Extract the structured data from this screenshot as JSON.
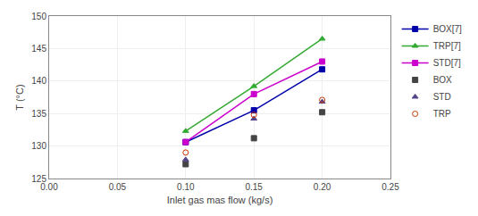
{
  "chart_data": {
    "type": "line",
    "xlabel": "Inlet gas mas flow (kg/s)",
    "ylabel": "T (°C)",
    "x": [
      0.1,
      0.15,
      0.2
    ],
    "series": [
      {
        "name": "BOX[7]",
        "type": "line",
        "color": "#0000aa",
        "marker": "square",
        "values": [
          130.6,
          135.5,
          141.8
        ]
      },
      {
        "name": "TRP[7]",
        "type": "line",
        "color": "#33aa33",
        "marker": "triangle",
        "values": [
          132.3,
          139.2,
          146.5
        ]
      },
      {
        "name": "STD[7]",
        "type": "line",
        "color": "#cc00cc",
        "marker": "square",
        "values": [
          130.6,
          138.0,
          143.0
        ]
      },
      {
        "name": "BOX",
        "type": "scatter",
        "color": "#444444",
        "marker": "square",
        "values": [
          127.2,
          131.2,
          135.2
        ]
      },
      {
        "name": "STD",
        "type": "scatter",
        "color": "#554488",
        "marker": "triangle",
        "values": [
          127.9,
          134.2,
          136.8
        ]
      },
      {
        "name": "TRP",
        "type": "scatter",
        "color": "#cc3300",
        "marker": "circle-open",
        "values": [
          129.0,
          134.8,
          137.1
        ]
      }
    ],
    "xlim": [
      0,
      0.25
    ],
    "xticks": [
      {
        "value": 0,
        "label": "0.00"
      },
      0.05,
      {
        "value": 0.1,
        "label": "0.10"
      },
      0.15,
      {
        "value": 0.2,
        "label": "0.20"
      },
      0.25
    ],
    "ylim": [
      125,
      150
    ],
    "yticks": [
      125,
      130,
      135,
      140,
      145,
      150
    ],
    "grid": true,
    "legend": "right"
  }
}
